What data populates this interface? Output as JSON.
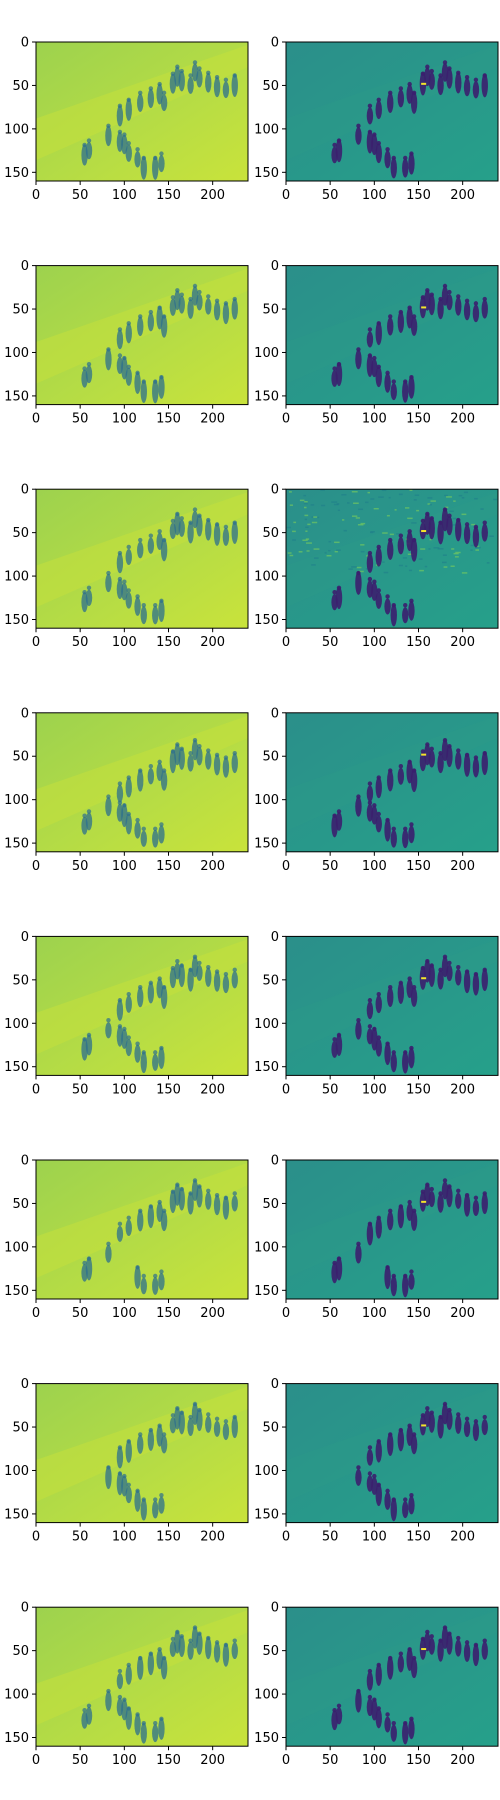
{
  "figure": {
    "grid": "8 rows x 2 columns of image subplots",
    "colormap": "viridis",
    "colors": {
      "left_background": "#a5d64a",
      "left_light": "#c7e23a",
      "right_background": "#2a9c8a",
      "right_dark": "#3b1f6e",
      "axis": "#000000"
    }
  },
  "chart_data": [
    {
      "type": "heatmap",
      "row": 1,
      "col": 1,
      "variant": "reconstruction",
      "xlim": [
        0,
        240
      ],
      "ylim": [
        160,
        0
      ],
      "xticks": [
        0,
        50,
        100,
        150,
        200
      ],
      "yticks": [
        0,
        50,
        100,
        150
      ],
      "grid": false
    },
    {
      "type": "heatmap",
      "row": 1,
      "col": 2,
      "variant": "difference",
      "xlim": [
        0,
        240
      ],
      "ylim": [
        160,
        0
      ],
      "xticks": [
        0,
        50,
        100,
        150,
        200
      ],
      "yticks": [
        0,
        50,
        100,
        150
      ],
      "grid": false
    },
    {
      "type": "heatmap",
      "row": 2,
      "col": 1,
      "variant": "reconstruction",
      "xlim": [
        0,
        240
      ],
      "ylim": [
        160,
        0
      ],
      "xticks": [
        0,
        50,
        100,
        150,
        200
      ],
      "yticks": [
        0,
        50,
        100,
        150
      ],
      "grid": false
    },
    {
      "type": "heatmap",
      "row": 2,
      "col": 2,
      "variant": "difference",
      "xlim": [
        0,
        240
      ],
      "ylim": [
        160,
        0
      ],
      "xticks": [
        0,
        50,
        100,
        150,
        200
      ],
      "yticks": [
        0,
        50,
        100,
        150
      ],
      "grid": false
    },
    {
      "type": "heatmap",
      "row": 3,
      "col": 1,
      "variant": "reconstruction",
      "xlim": [
        0,
        240
      ],
      "ylim": [
        160,
        0
      ],
      "xticks": [
        0,
        50,
        100,
        150,
        200
      ],
      "yticks": [
        0,
        50,
        100,
        150
      ],
      "grid": false
    },
    {
      "type": "heatmap",
      "row": 3,
      "col": 2,
      "variant": "difference-noisy",
      "xlim": [
        0,
        240
      ],
      "ylim": [
        160,
        0
      ],
      "xticks": [
        0,
        50,
        100,
        150,
        200
      ],
      "yticks": [
        0,
        50,
        100,
        150
      ],
      "grid": false
    },
    {
      "type": "heatmap",
      "row": 4,
      "col": 1,
      "variant": "reconstruction",
      "xlim": [
        0,
        240
      ],
      "ylim": [
        160,
        0
      ],
      "xticks": [
        0,
        50,
        100,
        150,
        200
      ],
      "yticks": [
        0,
        50,
        100,
        150
      ],
      "grid": false
    },
    {
      "type": "heatmap",
      "row": 4,
      "col": 2,
      "variant": "difference",
      "xlim": [
        0,
        240
      ],
      "ylim": [
        160,
        0
      ],
      "xticks": [
        0,
        50,
        100,
        150,
        200
      ],
      "yticks": [
        0,
        50,
        100,
        150
      ],
      "grid": false
    },
    {
      "type": "heatmap",
      "row": 5,
      "col": 1,
      "variant": "reconstruction",
      "xlim": [
        0,
        240
      ],
      "ylim": [
        160,
        0
      ],
      "xticks": [
        0,
        50,
        100,
        150,
        200
      ],
      "yticks": [
        0,
        50,
        100,
        150
      ],
      "grid": false
    },
    {
      "type": "heatmap",
      "row": 5,
      "col": 2,
      "variant": "difference",
      "xlim": [
        0,
        240
      ],
      "ylim": [
        160,
        0
      ],
      "xticks": [
        0,
        50,
        100,
        150,
        200
      ],
      "yticks": [
        0,
        50,
        100,
        150
      ],
      "grid": false
    },
    {
      "type": "heatmap",
      "row": 6,
      "col": 1,
      "variant": "reconstruction",
      "xlim": [
        0,
        240
      ],
      "ylim": [
        160,
        0
      ],
      "xticks": [
        0,
        50,
        100,
        150,
        200
      ],
      "yticks": [
        0,
        50,
        100,
        150
      ],
      "grid": false
    },
    {
      "type": "heatmap",
      "row": 6,
      "col": 2,
      "variant": "difference",
      "xlim": [
        0,
        240
      ],
      "ylim": [
        160,
        0
      ],
      "xticks": [
        0,
        50,
        100,
        150,
        200
      ],
      "yticks": [
        0,
        50,
        100,
        150
      ],
      "grid": false
    },
    {
      "type": "heatmap",
      "row": 7,
      "col": 1,
      "variant": "reconstruction",
      "xlim": [
        0,
        240
      ],
      "ylim": [
        160,
        0
      ],
      "xticks": [
        0,
        50,
        100,
        150,
        200
      ],
      "yticks": [
        0,
        50,
        100,
        150
      ],
      "grid": false
    },
    {
      "type": "heatmap",
      "row": 7,
      "col": 2,
      "variant": "difference",
      "xlim": [
        0,
        240
      ],
      "ylim": [
        160,
        0
      ],
      "xticks": [
        0,
        50,
        100,
        150,
        200
      ],
      "yticks": [
        0,
        50,
        100,
        150
      ],
      "grid": false
    },
    {
      "type": "heatmap",
      "row": 8,
      "col": 1,
      "variant": "reconstruction",
      "xlim": [
        0,
        240
      ],
      "ylim": [
        160,
        0
      ],
      "xticks": [
        0,
        50,
        100,
        150,
        200
      ],
      "yticks": [
        0,
        50,
        100,
        150
      ],
      "grid": false
    },
    {
      "type": "heatmap",
      "row": 8,
      "col": 2,
      "variant": "difference",
      "xlim": [
        0,
        240
      ],
      "ylim": [
        160,
        0
      ],
      "xticks": [
        0,
        50,
        100,
        150,
        200
      ],
      "yticks": [
        0,
        50,
        100,
        150
      ],
      "grid": false
    }
  ]
}
